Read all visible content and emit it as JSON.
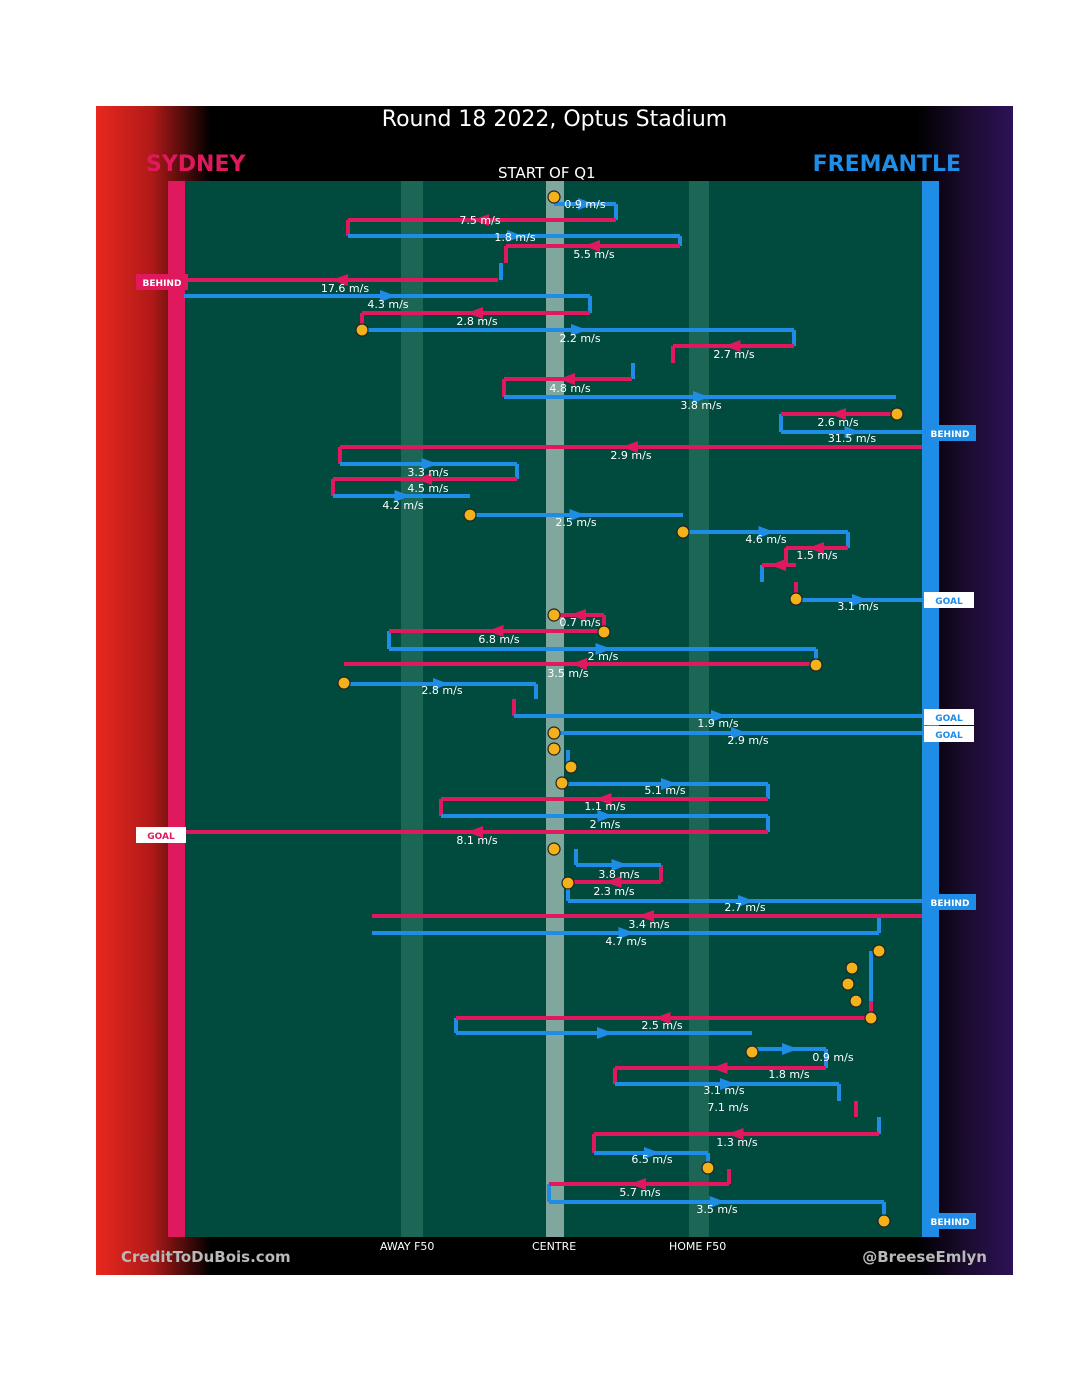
{
  "title": "Round 18 2022, Optus Stadium",
  "subtitle": "START OF Q1",
  "teams": {
    "home": {
      "name": "SYDNEY",
      "color": "#e0195e"
    },
    "away": {
      "name": "FREMANTLE",
      "color": "#1f8ce6"
    }
  },
  "footer": {
    "left": "CreditToDuBois.com",
    "right": "@BreeseEmlyn"
  },
  "chart_data": {
    "type": "line",
    "x_tick_labels": [
      "AWAY F50",
      "CENTRE",
      "HOME F50"
    ],
    "colors": {
      "sydney": "#e0195e",
      "fremantle": "#1f8ce6",
      "field": "#004b3d",
      "centre_band": "#7fa79e",
      "f50_band": "#1c6656",
      "possession_change": "#f3b21a"
    },
    "speeds": [
      "0.9 m/s",
      "7.5 m/s",
      "1.8 m/s",
      "5.5 m/s",
      "17.6 m/s",
      "4.3 m/s",
      "2.8 m/s",
      "2.2 m/s",
      "2.7 m/s",
      "4.8 m/s",
      "3.8 m/s",
      "2.6 m/s",
      "31.5 m/s",
      "2.9 m/s",
      "3.3 m/s",
      "4.5 m/s",
      "4.2 m/s",
      "2.5 m/s",
      "4.6 m/s",
      "1.5 m/s",
      "3.1 m/s",
      "0.7 m/s",
      "6.8 m/s",
      "2 m/s",
      "3.5 m/s",
      "2.8 m/s",
      "1.9 m/s",
      "2.9 m/s",
      "5.1 m/s",
      "1.1 m/s",
      "2 m/s",
      "8.1 m/s",
      "3.8 m/s",
      "2.3 m/s",
      "2.7 m/s",
      "3.4 m/s",
      "4.7 m/s",
      "2.5 m/s",
      "0.9 m/s",
      "1.8 m/s",
      "3.1 m/s",
      "7.1 m/s",
      "1.3 m/s",
      "6.5 m/s",
      "5.7 m/s",
      "3.5 m/s"
    ],
    "score_events": [
      {
        "label": "BEHIND",
        "team": "Sydney"
      },
      {
        "label": "BEHIND",
        "team": "Fremantle"
      },
      {
        "label": "GOAL",
        "team": "Fremantle"
      },
      {
        "label": "GOAL",
        "team": "Fremantle"
      },
      {
        "label": "GOAL",
        "team": "Fremantle"
      },
      {
        "label": "GOAL",
        "team": "Sydney"
      },
      {
        "label": "BEHIND",
        "team": "Fremantle"
      },
      {
        "label": "BEHIND",
        "team": "Fremantle"
      }
    ]
  }
}
